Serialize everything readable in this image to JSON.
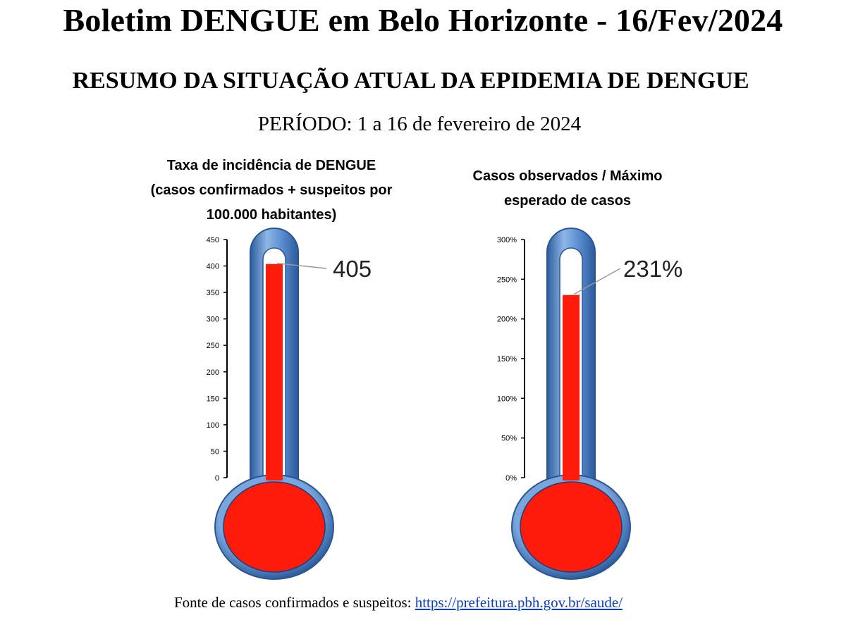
{
  "header": {
    "title": "Boletim DENGUE em Belo Horizonte - 16/Fev/2024",
    "subtitle": "RESUMO DA SITUAÇÃO ATUAL DA EPIDEMIA DE DENGUE",
    "period": "PERÍODO: 1 a 16 de fevereiro de 2024"
  },
  "chart_data": [
    {
      "type": "bar",
      "style": "thermometer",
      "title_lines": [
        "Taxa de incidência de DENGUE",
        "(casos confirmados + suspeitos por",
        "100.000 habitantes)"
      ],
      "values": [
        405
      ],
      "data_label": "405",
      "ylim": [
        0,
        450
      ],
      "yticks": [
        "0",
        "50",
        "100",
        "150",
        "200",
        "250",
        "300",
        "350",
        "400",
        "450"
      ],
      "fill_color": "#ff1a0a",
      "tube_color": "#4a80c8"
    },
    {
      "type": "bar",
      "style": "thermometer",
      "title_lines": [
        "Casos observados / Máximo",
        "esperado de casos"
      ],
      "values": [
        2.31
      ],
      "data_label": "231%",
      "ylim": [
        0,
        3
      ],
      "yticks": [
        "0%",
        "50%",
        "100%",
        "150%",
        "200%",
        "250%",
        "300%"
      ],
      "fill_color": "#ff1a0a",
      "tube_color": "#4a80c8"
    }
  ],
  "footer": {
    "source_label": "Fonte de casos confirmados e suspeitos: ",
    "source_link": "https://prefeitura.pbh.gov.br/saude/"
  }
}
